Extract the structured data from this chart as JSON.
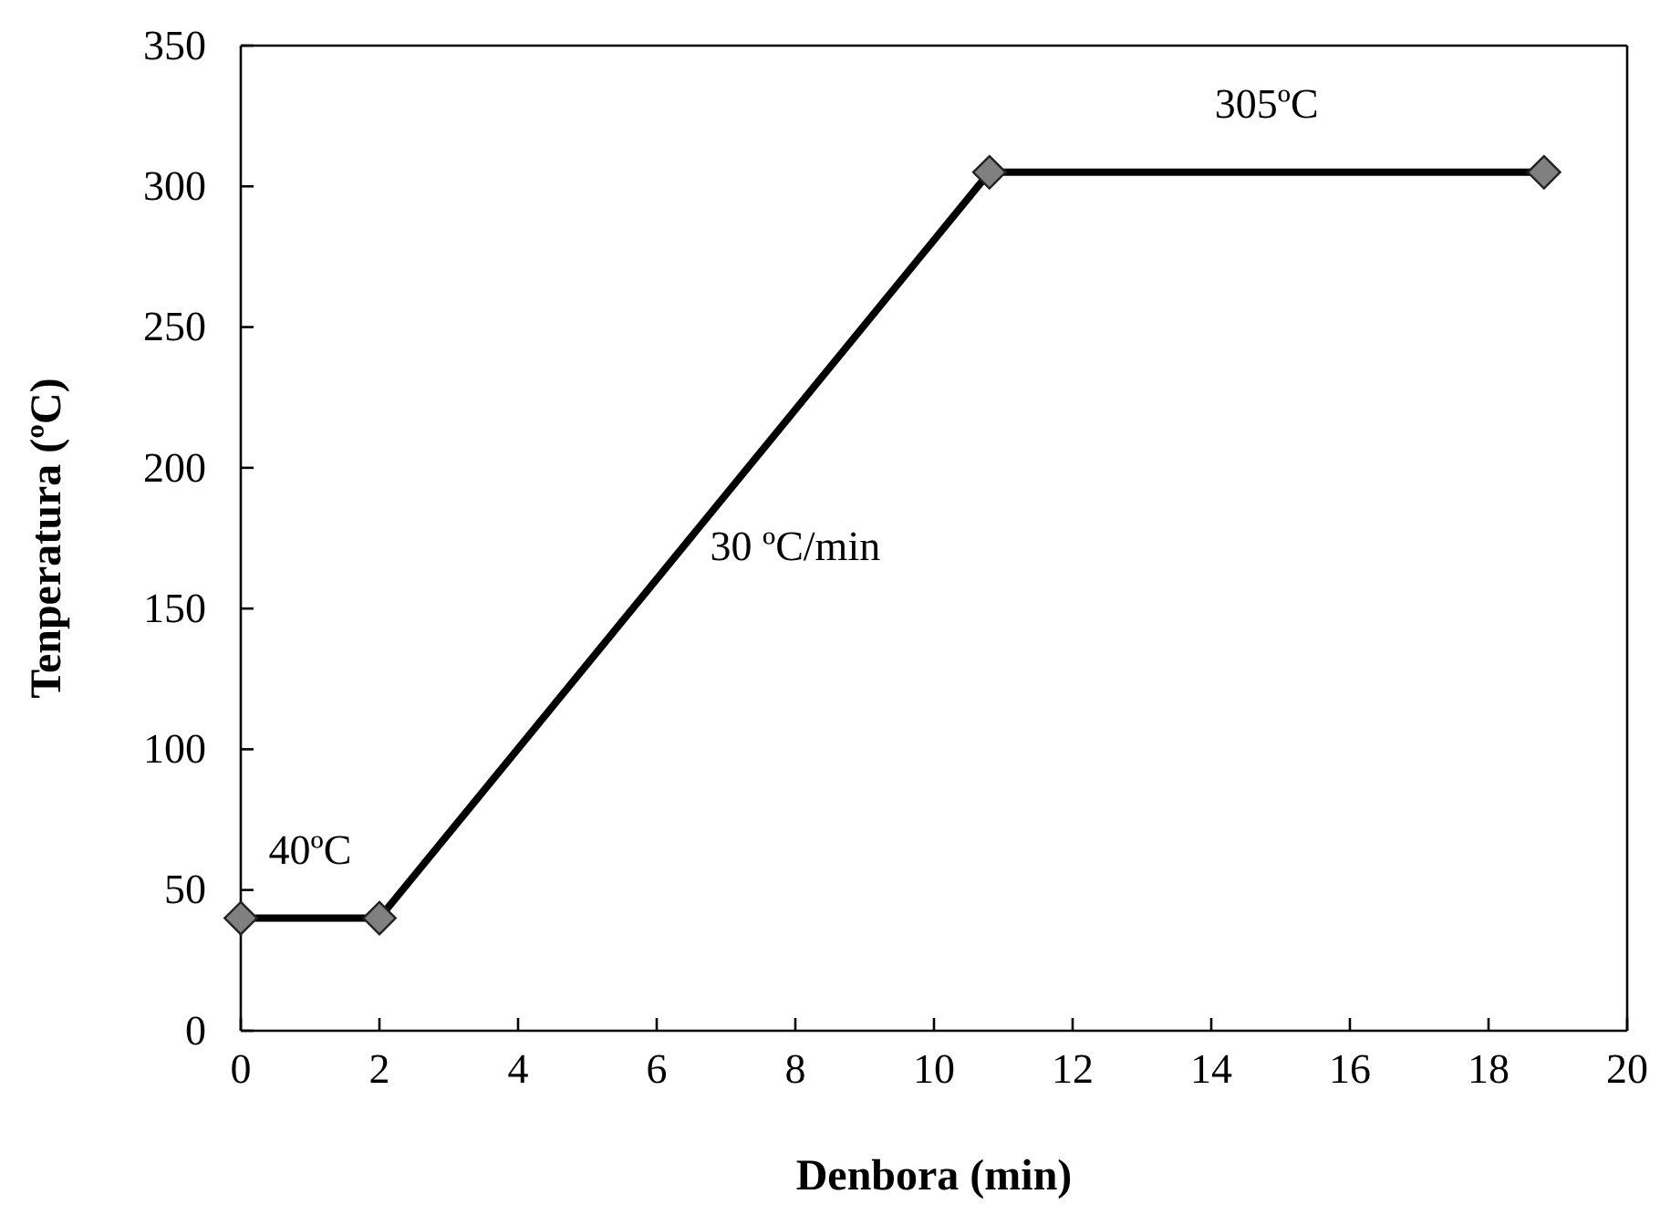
{
  "chart_data": {
    "type": "line",
    "xlabel": "Denbora (min)",
    "ylabel": "Tenperatura (ºC)",
    "x": [
      0,
      2,
      10.8,
      18.8
    ],
    "series": [
      {
        "color": "#000000",
        "values": [
          40,
          40,
          305,
          305
        ]
      }
    ],
    "marker": "diamond",
    "line_style": "solid",
    "grid": false,
    "xlim": [
      0,
      20
    ],
    "xticks": [
      0,
      2,
      4,
      6,
      8,
      10,
      12,
      14,
      16,
      18,
      20
    ],
    "ylim": [
      0,
      350
    ],
    "yticks": [
      0,
      50,
      100,
      150,
      200,
      250,
      300,
      350
    ],
    "annotations": [
      "40ºC",
      "30 ºC/min",
      "305ºC"
    ]
  }
}
